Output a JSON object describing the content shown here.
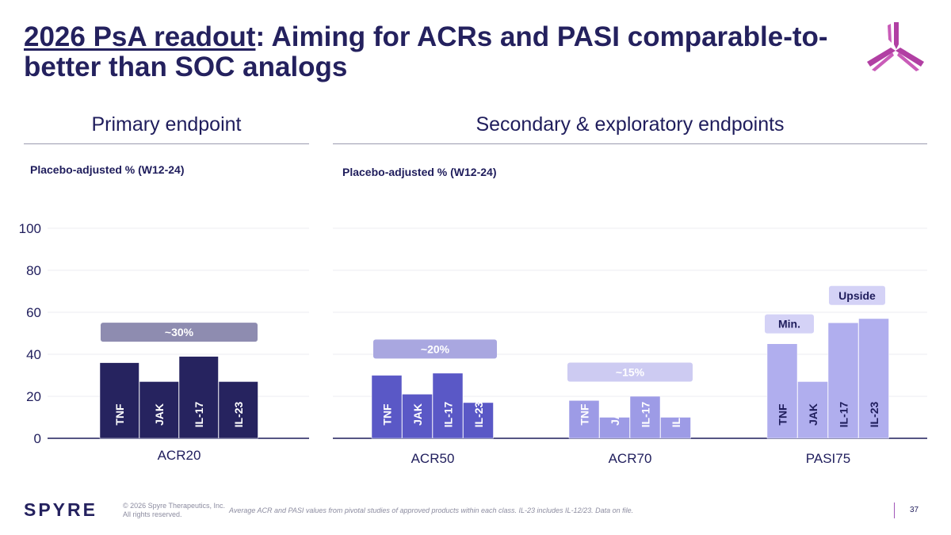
{
  "title": {
    "underlined": "2026 PsA readout",
    "rest": ": Aiming for ACRs and PASI comparable-to-better than SOC analogs"
  },
  "sections": {
    "primary": "Primary endpoint",
    "secondary": "Secondary & exploratory endpoints"
  },
  "axis_notes": {
    "primary": "Placebo-adjusted % (W12-24)",
    "secondary": "Placebo-adjusted % (W12-24)"
  },
  "colors": {
    "acr20": "#26235f",
    "acr50": "#5a58c6",
    "acr70": "#9d9be6",
    "pasi75": "#b0aeee",
    "badge_30": "#8e8cb0",
    "badge_20": "#a9a7e0",
    "badge_15": "#cdcbf2",
    "badge_min": "#d4d2f6",
    "badge_upside": "#d4d2f6"
  },
  "chart_data": {
    "type": "bar",
    "ylim": [
      0,
      100
    ],
    "yticks": [
      0,
      20,
      40,
      60,
      80,
      100
    ],
    "series_labels": [
      "TNF",
      "JAK",
      "IL-17",
      "IL-23"
    ],
    "groups": [
      {
        "category": "ACR20",
        "values": [
          36,
          27,
          39,
          27
        ],
        "badge": "~30%",
        "badge_value": 50.5
      },
      {
        "category": "ACR50",
        "values": [
          30,
          21,
          31,
          17
        ],
        "badge": "~20%",
        "badge_value": 42.5
      },
      {
        "category": "ACR70",
        "values": [
          18,
          10,
          20,
          10
        ],
        "badge": "~15%",
        "badge_value": 31.5
      },
      {
        "category": "PASI75",
        "values": [
          45,
          27,
          55,
          57
        ],
        "badges": [
          {
            "label": "Min.",
            "value": 54.5
          },
          {
            "label": "Upside",
            "value": 68
          }
        ]
      }
    ]
  },
  "footer": {
    "logo": "SPYRE",
    "copyright_1": "© 2026 Spyre Therapeutics, Inc.",
    "copyright_2": "All rights reserved.",
    "footnote": "Average ACR and PASI values from pivotal studies of approved products within each class. IL-23 includes IL-12/23. Data on file.",
    "page": "37"
  }
}
